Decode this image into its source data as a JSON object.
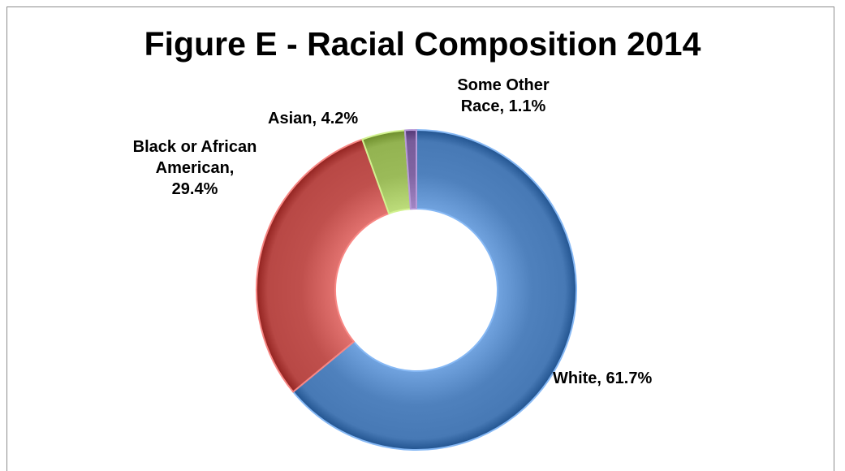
{
  "chart_data": {
    "type": "pie",
    "variant": "donut",
    "title": "Figure E - Racial Composition 2014",
    "slices": [
      {
        "name": "White",
        "value": 61.7,
        "label": "White, 61.7%",
        "color": "#4f81bd"
      },
      {
        "name": "Black or African American",
        "value": 29.4,
        "label": "Black or African\nAmerican,\n29.4%",
        "color": "#c0504d"
      },
      {
        "name": "Asian",
        "value": 4.2,
        "label": "Asian, 4.2%",
        "color": "#9bbb59"
      },
      {
        "name": "Some Other Race",
        "value": 1.1,
        "label": "Some Other\nRace, 1.1%",
        "color": "#8064a2"
      }
    ],
    "legend": "none"
  }
}
